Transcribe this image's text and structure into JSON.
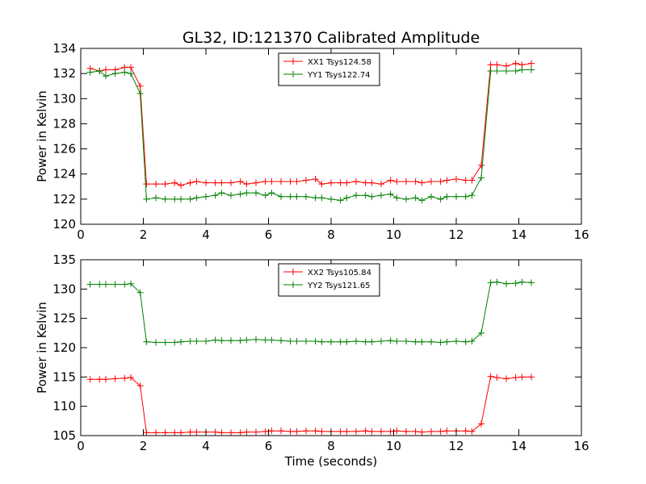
{
  "figure": {
    "title": "GL32, ID:121370 Calibrated Amplitude"
  },
  "chart_data": [
    {
      "type": "line",
      "title": "GL32, ID:121370 Calibrated Amplitude",
      "xlabel": "",
      "ylabel": "Power in Kelvin",
      "xlim": [
        0,
        16
      ],
      "ylim": [
        120,
        134
      ],
      "xticks": [
        0,
        2,
        4,
        6,
        8,
        10,
        12,
        14,
        16
      ],
      "yticks": [
        120,
        122,
        124,
        126,
        128,
        130,
        132,
        134
      ],
      "grid": false,
      "legend_position": "top-center",
      "marker": "+",
      "x": [
        0.3,
        0.6,
        0.8,
        1.1,
        1.4,
        1.6,
        1.9,
        2.1,
        2.4,
        2.7,
        3.0,
        3.2,
        3.5,
        3.7,
        4.0,
        4.3,
        4.5,
        4.8,
        5.1,
        5.3,
        5.6,
        5.9,
        6.1,
        6.4,
        6.7,
        6.9,
        7.2,
        7.5,
        7.7,
        8.0,
        8.3,
        8.5,
        8.8,
        9.1,
        9.3,
        9.6,
        9.9,
        10.1,
        10.4,
        10.7,
        10.9,
        11.2,
        11.5,
        11.7,
        12.0,
        12.3,
        12.5,
        12.8,
        13.1,
        13.3,
        13.6,
        13.9,
        14.1,
        14.4
      ],
      "series": [
        {
          "name": "XX1 Tsys124.58",
          "color": "#ff0000",
          "values": [
            132.4,
            132.2,
            132.3,
            132.3,
            132.5,
            132.5,
            131.0,
            123.2,
            123.2,
            123.2,
            123.3,
            123.1,
            123.3,
            123.4,
            123.3,
            123.3,
            123.3,
            123.3,
            123.4,
            123.2,
            123.3,
            123.4,
            123.4,
            123.4,
            123.4,
            123.4,
            123.5,
            123.6,
            123.2,
            123.3,
            123.3,
            123.3,
            123.4,
            123.3,
            123.3,
            123.2,
            123.5,
            123.4,
            123.4,
            123.4,
            123.3,
            123.4,
            123.4,
            123.5,
            123.6,
            123.5,
            123.5,
            124.7,
            132.7,
            132.7,
            132.6,
            132.8,
            132.7,
            132.8
          ]
        },
        {
          "name": "YY1 Tsys122.74",
          "color": "#008000",
          "values": [
            132.1,
            132.2,
            131.8,
            132.0,
            132.1,
            132.0,
            130.4,
            122.0,
            122.1,
            122.0,
            122.0,
            122.0,
            122.0,
            122.1,
            122.2,
            122.3,
            122.5,
            122.3,
            122.4,
            122.5,
            122.5,
            122.3,
            122.5,
            122.2,
            122.2,
            122.2,
            122.2,
            122.1,
            122.1,
            122.0,
            121.9,
            122.1,
            122.3,
            122.3,
            122.2,
            122.3,
            122.4,
            122.1,
            122.0,
            122.1,
            121.9,
            122.2,
            122.0,
            122.2,
            122.2,
            122.2,
            122.3,
            123.7,
            132.2,
            132.2,
            132.2,
            132.2,
            132.3,
            132.3
          ]
        }
      ]
    },
    {
      "type": "line",
      "title": "",
      "xlabel": "Time (seconds)",
      "ylabel": "Power in Kelvin",
      "xlim": [
        0,
        16
      ],
      "ylim": [
        105,
        135
      ],
      "xticks": [
        0,
        2,
        4,
        6,
        8,
        10,
        12,
        14,
        16
      ],
      "yticks": [
        105,
        110,
        115,
        120,
        125,
        130,
        135
      ],
      "grid": false,
      "legend_position": "top-center",
      "marker": "+",
      "x": [
        0.3,
        0.6,
        0.8,
        1.1,
        1.4,
        1.6,
        1.9,
        2.1,
        2.4,
        2.7,
        3.0,
        3.2,
        3.5,
        3.7,
        4.0,
        4.3,
        4.5,
        4.8,
        5.1,
        5.3,
        5.6,
        5.9,
        6.1,
        6.4,
        6.7,
        6.9,
        7.2,
        7.5,
        7.7,
        8.0,
        8.3,
        8.5,
        8.8,
        9.1,
        9.3,
        9.6,
        9.9,
        10.1,
        10.4,
        10.7,
        10.9,
        11.2,
        11.5,
        11.7,
        12.0,
        12.3,
        12.5,
        12.8,
        13.1,
        13.3,
        13.6,
        13.9,
        14.1,
        14.4
      ],
      "series": [
        {
          "name": "XX2 Tsys105.84",
          "color": "#ff0000",
          "values": [
            114.6,
            114.6,
            114.6,
            114.7,
            114.8,
            114.9,
            113.5,
            105.5,
            105.5,
            105.5,
            105.5,
            105.5,
            105.6,
            105.6,
            105.6,
            105.6,
            105.5,
            105.5,
            105.5,
            105.6,
            105.6,
            105.7,
            105.8,
            105.8,
            105.7,
            105.7,
            105.8,
            105.8,
            105.7,
            105.7,
            105.7,
            105.7,
            105.7,
            105.8,
            105.7,
            105.7,
            105.7,
            105.8,
            105.7,
            105.7,
            105.6,
            105.7,
            105.7,
            105.8,
            105.8,
            105.8,
            105.7,
            107.0,
            115.1,
            114.9,
            114.7,
            114.9,
            115.0,
            115.0
          ]
        },
        {
          "name": "YY2 Tsys121.65",
          "color": "#008000",
          "values": [
            130.8,
            130.8,
            130.8,
            130.8,
            130.8,
            130.9,
            129.4,
            121.0,
            120.9,
            120.9,
            120.9,
            121.0,
            121.1,
            121.1,
            121.1,
            121.3,
            121.2,
            121.2,
            121.2,
            121.3,
            121.4,
            121.3,
            121.3,
            121.2,
            121.1,
            121.1,
            121.1,
            121.1,
            121.0,
            121.0,
            121.0,
            121.0,
            121.1,
            121.0,
            121.0,
            121.1,
            121.2,
            121.1,
            121.1,
            121.0,
            121.0,
            121.0,
            120.9,
            121.0,
            121.1,
            121.0,
            121.1,
            122.5,
            131.1,
            131.2,
            130.9,
            131.0,
            131.2,
            131.1
          ]
        }
      ]
    }
  ]
}
